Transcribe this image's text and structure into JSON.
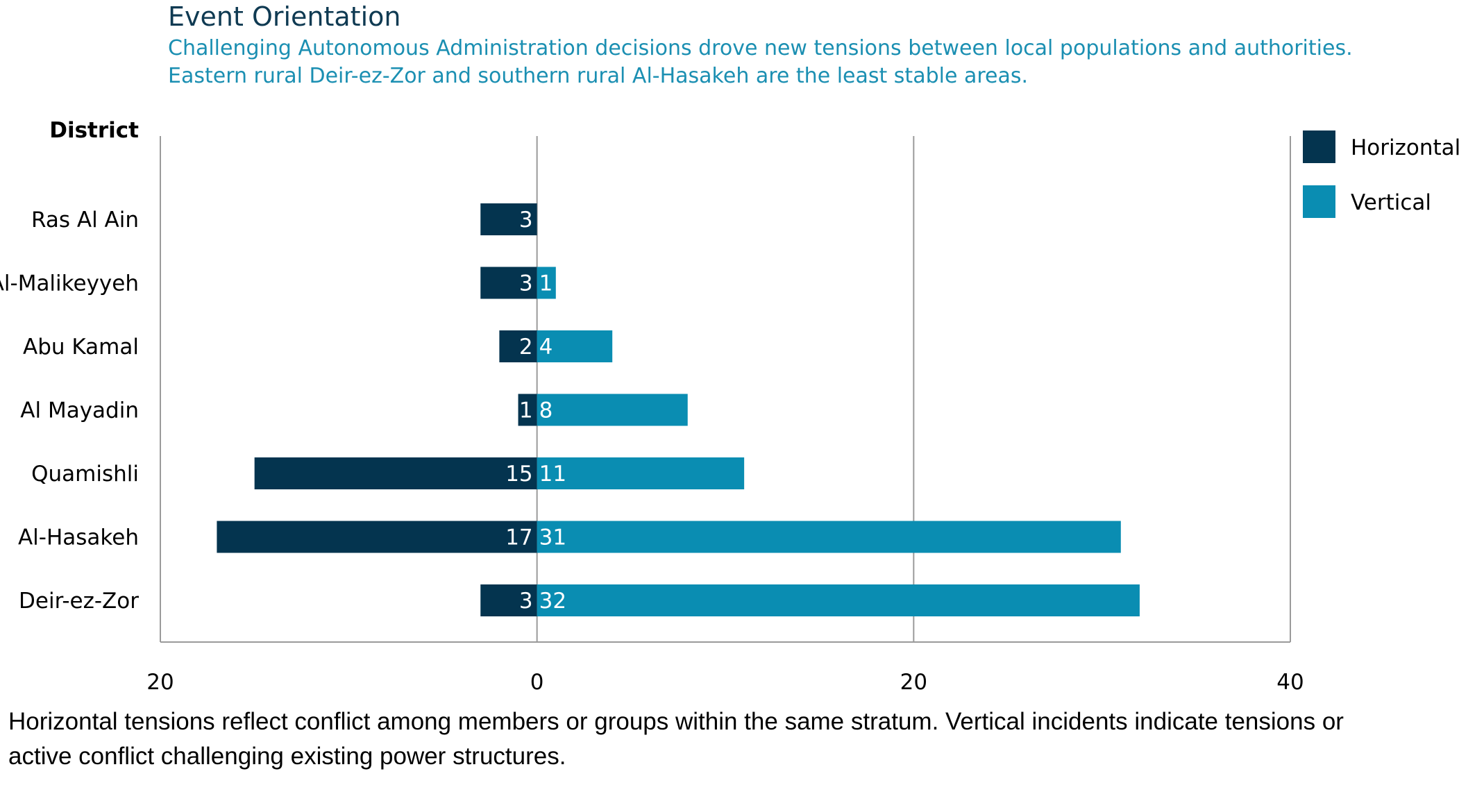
{
  "chart_data": {
    "type": "bar",
    "title": "Event Orientation",
    "subtitle": [
      "Challenging Autonomous Administration decisions drove new tensions between local populations and authorities.",
      "Eastern rural Deir-ez-Zor and southern rural Al-Hasakeh are the least stable areas."
    ],
    "ylabel": "District",
    "categories": [
      "Ras Al Ain",
      "Al-Malikeyyeh",
      "Abu Kamal",
      "Al Mayadin",
      "Quamishli",
      "Al-Hasakeh",
      "Deir-ez-Zor"
    ],
    "series": [
      {
        "name": "Horizontal",
        "values": [
          3,
          3,
          2,
          1,
          15,
          17,
          3
        ],
        "color": "#04344f"
      },
      {
        "name": "Vertical",
        "values": [
          null,
          1,
          4,
          8,
          11,
          31,
          32
        ],
        "color": "#0a8db2"
      }
    ],
    "xlim": [
      -20,
      40
    ],
    "xticks": [
      -20,
      0,
      20,
      40
    ],
    "xtick_labels": [
      "20",
      "0",
      "20",
      "40"
    ],
    "orientation": "horizontal-diverging",
    "gridlines": [
      0,
      20
    ],
    "legend_position": "top-right"
  },
  "footnote": [
    "Horizontal tensions reflect conflict among members or groups within the same stratum. Vertical incidents indicate tensions or",
    "active conflict challenging existing power structures."
  ]
}
